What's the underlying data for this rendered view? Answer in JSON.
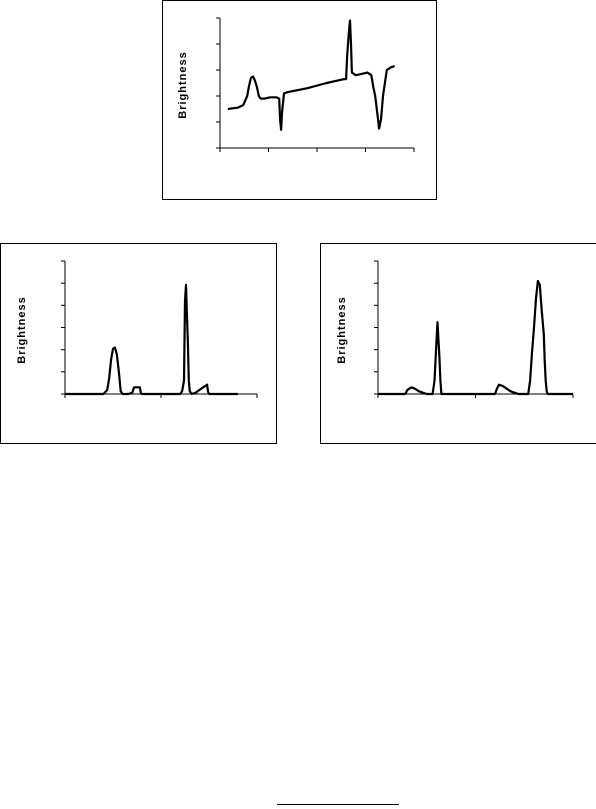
{
  "chart_data": [
    {
      "type": "line",
      "title": "",
      "xlabel": "",
      "ylabel": "Brightness",
      "xlim": [
        0,
        100
      ],
      "ylim": [
        0,
        100
      ],
      "x_ticks": [
        0,
        25,
        50,
        75,
        100
      ],
      "y_ticks": [
        0,
        20,
        40,
        60,
        80,
        100
      ],
      "grid": false,
      "series": [
        {
          "points": [
            [
              4,
              30
            ],
            [
              9,
              31
            ],
            [
              12,
              33
            ],
            [
              14,
              40
            ],
            [
              15,
              48
            ],
            [
              16,
              54
            ],
            [
              17,
              55
            ],
            [
              18,
              52
            ],
            [
              19,
              47
            ],
            [
              20,
              40
            ],
            [
              21,
              38
            ],
            [
              23,
              38
            ],
            [
              26,
              39
            ],
            [
              29,
              39
            ],
            [
              30.5,
              38
            ],
            [
              31,
              22
            ],
            [
              31.5,
              14
            ],
            [
              32,
              28
            ],
            [
              33,
              42
            ],
            [
              35,
              43
            ],
            [
              45,
              46
            ],
            [
              55,
              50
            ],
            [
              64,
              53
            ],
            [
              65,
              53
            ],
            [
              65.5,
              70
            ],
            [
              66,
              80
            ],
            [
              66.5,
              90
            ],
            [
              67,
              98
            ],
            [
              67.5,
              80
            ],
            [
              68,
              58
            ],
            [
              70,
              56
            ],
            [
              73,
              57
            ],
            [
              76,
              58
            ],
            [
              78,
              56
            ],
            [
              79,
              47
            ],
            [
              80,
              40
            ],
            [
              81,
              28
            ],
            [
              82,
              15
            ],
            [
              83,
              22
            ],
            [
              84,
              40
            ],
            [
              86,
              60
            ],
            [
              88,
              62
            ],
            [
              90,
              63
            ]
          ],
          "color": "#000000"
        }
      ]
    },
    {
      "type": "line",
      "title": "",
      "xlabel": "",
      "ylabel": "Brightness",
      "xlim": [
        0,
        100
      ],
      "ylim": [
        0,
        100
      ],
      "x_ticks": [
        0,
        50,
        100
      ],
      "y_ticks": [
        0,
        16.7,
        33.3,
        50,
        66.7,
        83.3,
        100
      ],
      "grid": false,
      "series": [
        {
          "points": [
            [
              0,
              0
            ],
            [
              20,
              0
            ],
            [
              22,
              3
            ],
            [
              23,
              12
            ],
            [
              24,
              26
            ],
            [
              25,
              34
            ],
            [
              26,
              35
            ],
            [
              27,
              30
            ],
            [
              28,
              17
            ],
            [
              29,
              2
            ],
            [
              30,
              0
            ],
            [
              33,
              0
            ],
            [
              35,
              1
            ],
            [
              36,
              5
            ],
            [
              38,
              5
            ],
            [
              39,
              5
            ],
            [
              39.5,
              1
            ],
            [
              40,
              0
            ],
            [
              60,
              0
            ],
            [
              61,
              2
            ],
            [
              62,
              10
            ],
            [
              62.5,
              70
            ],
            [
              63,
              82
            ],
            [
              63.5,
              60
            ],
            [
              64,
              38
            ],
            [
              64.5,
              10
            ],
            [
              65,
              2
            ],
            [
              66,
              0
            ],
            [
              68,
              1
            ],
            [
              70,
              3
            ],
            [
              72,
              5
            ],
            [
              73,
              6
            ],
            [
              74,
              7
            ],
            [
              74.5,
              2
            ],
            [
              75,
              0
            ],
            [
              90,
              0
            ]
          ],
          "color": "#000000"
        }
      ]
    },
    {
      "type": "line",
      "title": "",
      "xlabel": "",
      "ylabel": "Brightness",
      "xlim": [
        0,
        100
      ],
      "ylim": [
        0,
        100
      ],
      "x_ticks": [
        0,
        50,
        100
      ],
      "y_ticks": [
        0,
        16.7,
        33.3,
        50,
        66.7,
        83.3,
        100
      ],
      "grid": false,
      "series": [
        {
          "points": [
            [
              0,
              0
            ],
            [
              14,
              0
            ],
            [
              15,
              3
            ],
            [
              17,
              5
            ],
            [
              19,
              4
            ],
            [
              21,
              2
            ],
            [
              23,
              1
            ],
            [
              25,
              0
            ],
            [
              28,
              0
            ],
            [
              29,
              10
            ],
            [
              30,
              40
            ],
            [
              30.5,
              54
            ],
            [
              31,
              40
            ],
            [
              31.5,
              28
            ],
            [
              32,
              10
            ],
            [
              32.5,
              0
            ],
            [
              60,
              0
            ],
            [
              61,
              4
            ],
            [
              62,
              7
            ],
            [
              64,
              6
            ],
            [
              66,
              4
            ],
            [
              68,
              2
            ],
            [
              70,
              1
            ],
            [
              72,
              0
            ],
            [
              77,
              0
            ],
            [
              78,
              10
            ],
            [
              79,
              32
            ],
            [
              80,
              50
            ],
            [
              81,
              72
            ],
            [
              82,
              85
            ],
            [
              83,
              82
            ],
            [
              83.5,
              72
            ],
            [
              84,
              62
            ],
            [
              85,
              45
            ],
            [
              85.5,
              25
            ],
            [
              86,
              10
            ],
            [
              86.5,
              2
            ],
            [
              87,
              0
            ],
            [
              100,
              0
            ]
          ],
          "color": "#000000"
        }
      ]
    }
  ]
}
